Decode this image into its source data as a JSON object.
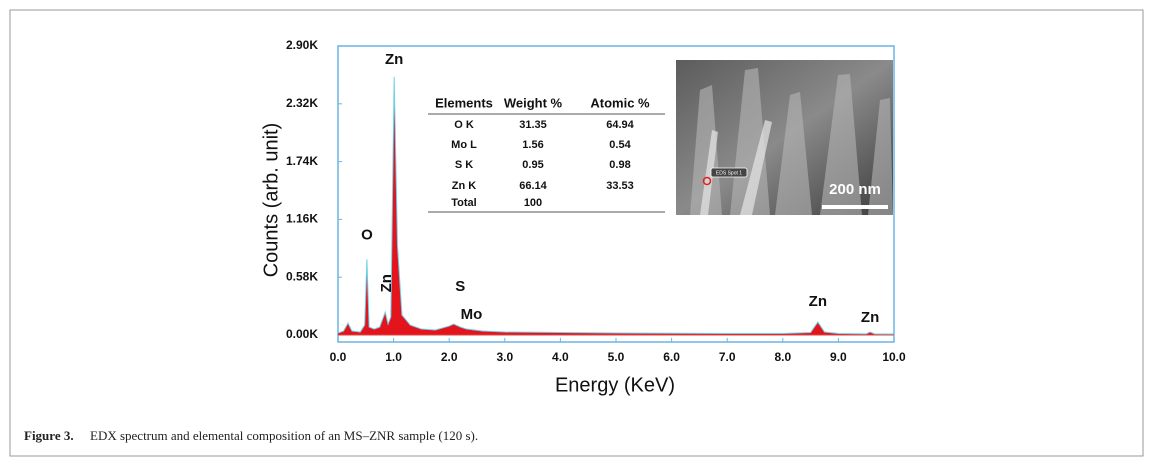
{
  "chart_data": {
    "type": "area",
    "x_label": "Energy (KeV)",
    "y_label": "Counts (arb. unit)",
    "x": [
      0,
      0.1,
      0.18,
      0.25,
      0.4,
      0.48,
      0.52,
      0.56,
      0.65,
      0.75,
      0.85,
      0.9,
      0.95,
      1.01,
      1.07,
      1.15,
      1.3,
      1.5,
      1.75,
      2.0,
      2.08,
      2.2,
      2.31,
      2.6,
      3.0,
      4.0,
      5.0,
      6.0,
      7.0,
      8.0,
      8.5,
      8.63,
      8.75,
      9.0,
      9.5,
      9.57,
      9.65,
      10.0
    ],
    "values": [
      20,
      40,
      120,
      40,
      30,
      100,
      760,
      80,
      60,
      80,
      230,
      110,
      180,
      2590,
      900,
      200,
      100,
      60,
      50,
      90,
      110,
      80,
      60,
      40,
      30,
      25,
      20,
      18,
      15,
      15,
      25,
      130,
      30,
      15,
      12,
      30,
      12,
      10
    ],
    "color": "#e3141c",
    "line_color": "#6fd0ea",
    "frame_color": "#6cb4e4",
    "xlim": [
      0,
      10
    ],
    "ylim": [
      -70,
      2900
    ],
    "xticks": [
      {
        "value": 0,
        "label": "0.0"
      },
      {
        "value": 1,
        "label": "1.0"
      },
      {
        "value": 2,
        "label": "2.0"
      },
      {
        "value": 3,
        "label": "3.0"
      },
      {
        "value": 4,
        "label": "4.0"
      },
      {
        "value": 5,
        "label": "5.0"
      },
      {
        "value": 6,
        "label": "6.0"
      },
      {
        "value": 7,
        "label": "7.0"
      },
      {
        "value": 8,
        "label": "8.0"
      },
      {
        "value": 9,
        "label": "9.0"
      },
      {
        "value": 10,
        "label": "10.0"
      }
    ],
    "yticks": [
      {
        "value": 0,
        "label": "0.00K"
      },
      {
        "value": 580,
        "label": "0.58K"
      },
      {
        "value": 1160,
        "label": "1.16K"
      },
      {
        "value": 1740,
        "label": "1.74K"
      },
      {
        "value": 2320,
        "label": "2.32K"
      },
      {
        "value": 2900,
        "label": "2.90K"
      }
    ],
    "annotations": [
      {
        "text": "O",
        "x": 0.52,
        "y": 1000
      },
      {
        "text": "Zn",
        "x": 1.01,
        "y": 2760
      },
      {
        "text": "Zn",
        "x": 0.88,
        "y": 520,
        "angle": -90
      },
      {
        "text": "S",
        "x": 2.2,
        "y": 480
      },
      {
        "text": "Mo",
        "x": 2.4,
        "y": 200
      },
      {
        "text": "Zn",
        "x": 8.63,
        "y": 330
      },
      {
        "text": "Zn",
        "x": 9.57,
        "y": 170
      }
    ],
    "table": {
      "columns": [
        "Elements",
        "Weight %",
        "Atomic %"
      ],
      "rows": [
        [
          "O K",
          "31.35",
          "64.94"
        ],
        [
          "Mo L",
          "1.56",
          "0.54"
        ],
        [
          "S K",
          "0.95",
          "0.98"
        ],
        [
          "Zn K",
          "66.14",
          "33.53"
        ],
        [
          "Total",
          "100"
        ]
      ]
    },
    "inset_image": {
      "scale_bar": "200 nm",
      "spot_label": "EDS Spot 1"
    }
  },
  "caption": {
    "label": "Figure 3.",
    "text": "EDX spectrum and elemental composition of an MS–ZNR sample (120 s)."
  }
}
